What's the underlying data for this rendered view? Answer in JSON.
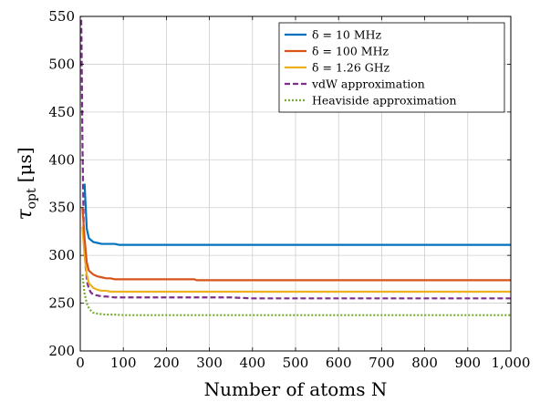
{
  "chart_data": {
    "type": "line",
    "title": "",
    "xlabel": "Number of atoms N",
    "ylabel": "τ_opt [μs]",
    "ylabel_parts": {
      "symbol": "τ",
      "subscript": "opt",
      "unit": "[μs]"
    },
    "xlim": [
      0,
      1000
    ],
    "ylim": [
      200,
      550
    ],
    "xticks": [
      0,
      100,
      200,
      300,
      400,
      500,
      600,
      700,
      800,
      900,
      1000
    ],
    "xtick_labels": [
      "0",
      "100",
      "200",
      "300",
      "400",
      "500",
      "600",
      "700",
      "800",
      "900",
      "1,000"
    ],
    "yticks": [
      200,
      250,
      300,
      350,
      400,
      450,
      500,
      550
    ],
    "ytick_labels": [
      "200",
      "250",
      "300",
      "350",
      "400",
      "450",
      "500",
      "550"
    ],
    "grid": true,
    "legend_position": "top-right",
    "series": [
      {
        "name": "δ = 10 MHz",
        "color": "#0072BD",
        "style": "solid",
        "x": [
          10,
          15,
          20,
          30,
          40,
          50,
          60,
          70,
          80,
          90,
          100,
          200,
          400,
          600,
          800,
          1000
        ],
        "y": [
          375,
          328,
          318,
          314,
          313,
          312,
          312,
          312,
          312,
          311,
          311,
          311,
          311,
          311,
          311,
          311
        ]
      },
      {
        "name": "δ = 100 MHz",
        "color": "#D95319",
        "style": "solid",
        "x": [
          5,
          10,
          15,
          20,
          30,
          40,
          50,
          60,
          70,
          80,
          100,
          200,
          265,
          270,
          400,
          600,
          800,
          1000
        ],
        "y": [
          350,
          318,
          293,
          284,
          280,
          278,
          277,
          276,
          276,
          275,
          275,
          275,
          275,
          274,
          274,
          274,
          274,
          274
        ]
      },
      {
        "name": "δ = 1.26 GHz",
        "color": "#EDB120",
        "style": "solid",
        "x": [
          5,
          10,
          15,
          20,
          30,
          40,
          50,
          60,
          70,
          80,
          100,
          200,
          400,
          600,
          800,
          1000
        ],
        "y": [
          330,
          300,
          280,
          271,
          266,
          264,
          263,
          263,
          262,
          262,
          262,
          262,
          262,
          262,
          262,
          262
        ]
      },
      {
        "name": "vdW approximation",
        "color": "#7E2F8E",
        "style": "dashed",
        "x": [
          2,
          3,
          5,
          8,
          12,
          16,
          20,
          25,
          30,
          40,
          50,
          60,
          80,
          100,
          200,
          350,
          400,
          600,
          800,
          1000
        ],
        "y": [
          555,
          520,
          420,
          330,
          290,
          272,
          265,
          261,
          259,
          258,
          257,
          257,
          256,
          256,
          256,
          256,
          255,
          255,
          255,
          255
        ]
      },
      {
        "name": "Heaviside approximation",
        "color": "#77AC30",
        "style": "dotted",
        "x": [
          5,
          10,
          15,
          20,
          25,
          30,
          40,
          50,
          60,
          80,
          100,
          200,
          400,
          600,
          800,
          1000
        ],
        "y": [
          280,
          260,
          250,
          245,
          242,
          240,
          239,
          238.5,
          238,
          238,
          237.5,
          237.5,
          237.5,
          237.5,
          237.5,
          237.5
        ]
      }
    ]
  }
}
